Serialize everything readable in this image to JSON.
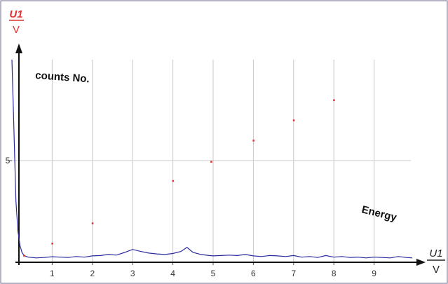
{
  "chart_data": {
    "type": "line",
    "y_axis_label": {
      "top": "U1",
      "bottom": "V"
    },
    "x_axis_label": {
      "top": "U1",
      "bottom": "V"
    },
    "ylabel_note": "counts No.",
    "xlabel_note": "Energy",
    "x_ticks": [
      "1",
      "2",
      "3",
      "4",
      "5",
      "6",
      "7",
      "8",
      "9"
    ],
    "y_ticks": [
      "5"
    ],
    "xlim": [
      0,
      10
    ],
    "ylim": [
      0,
      10
    ],
    "grid": true,
    "series": [
      {
        "color": "#2a2aa0",
        "x": [
          0.0,
          0.05,
          0.1,
          0.15,
          0.2,
          0.25,
          0.3,
          0.4,
          0.5,
          0.6,
          0.8,
          1.0,
          1.2,
          1.4,
          1.6,
          1.8,
          2.0,
          2.2,
          2.4,
          2.6,
          2.8,
          3.0,
          3.2,
          3.4,
          3.6,
          3.8,
          4.0,
          4.2,
          4.35,
          4.5,
          4.7,
          4.9,
          5.0,
          5.2,
          5.4,
          5.6,
          5.8,
          6.0,
          6.2,
          6.4,
          6.6,
          6.8,
          7.0,
          7.2,
          7.4,
          7.6,
          7.8,
          8.0,
          8.2,
          8.4,
          8.6,
          8.8,
          9.0,
          9.2,
          9.4,
          9.6,
          9.8,
          9.95
        ],
        "y": [
          10.0,
          6.5,
          3.0,
          1.5,
          0.8,
          0.45,
          0.3,
          0.22,
          0.2,
          0.18,
          0.2,
          0.24,
          0.22,
          0.2,
          0.25,
          0.22,
          0.28,
          0.3,
          0.35,
          0.32,
          0.45,
          0.6,
          0.5,
          0.42,
          0.38,
          0.35,
          0.4,
          0.5,
          0.7,
          0.45,
          0.35,
          0.3,
          0.28,
          0.3,
          0.32,
          0.3,
          0.35,
          0.28,
          0.25,
          0.3,
          0.28,
          0.25,
          0.3,
          0.22,
          0.25,
          0.2,
          0.3,
          0.22,
          0.25,
          0.2,
          0.22,
          0.18,
          0.22,
          0.2,
          0.18,
          0.25,
          0.2,
          0.18
        ]
      },
      {
        "color": "#e03030",
        "style": "points",
        "x": [
          0.3,
          1.0,
          2.0,
          4.0,
          4.95,
          6.0,
          7.0,
          8.0
        ],
        "y": [
          0.3,
          0.9,
          1.9,
          4.0,
          4.95,
          6.0,
          7.0,
          8.0
        ]
      }
    ]
  }
}
